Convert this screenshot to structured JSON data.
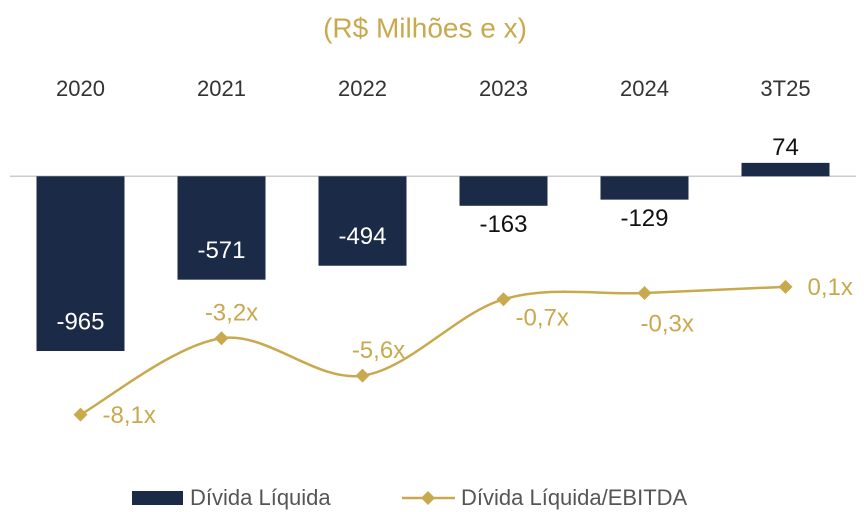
{
  "chart_data": {
    "type": "combo",
    "title": "(R$ Milhões e x)",
    "categories": [
      "2020",
      "2021",
      "2022",
      "2023",
      "2024",
      "3T25"
    ],
    "ylim": [
      -1600,
      250
    ],
    "y2lim": [
      -11.4,
      10.1
    ],
    "series": [
      {
        "name": "Dívida Líquida",
        "type": "bar",
        "color": "#1b2a47",
        "values": [
          -965,
          -571,
          -494,
          -163,
          -129,
          74
        ]
      },
      {
        "name": "Dívida Líquida/EBITDA",
        "type": "line",
        "axis": "y2",
        "color": "#c9a94e",
        "values": [
          -8.1,
          -3.2,
          -5.6,
          -0.7,
          -0.3,
          0.1
        ],
        "value_labels": [
          "-8,1x",
          "-3,2x",
          "-5,6x",
          "-0,7x",
          "-0,3x",
          "0,1x"
        ]
      }
    ]
  }
}
